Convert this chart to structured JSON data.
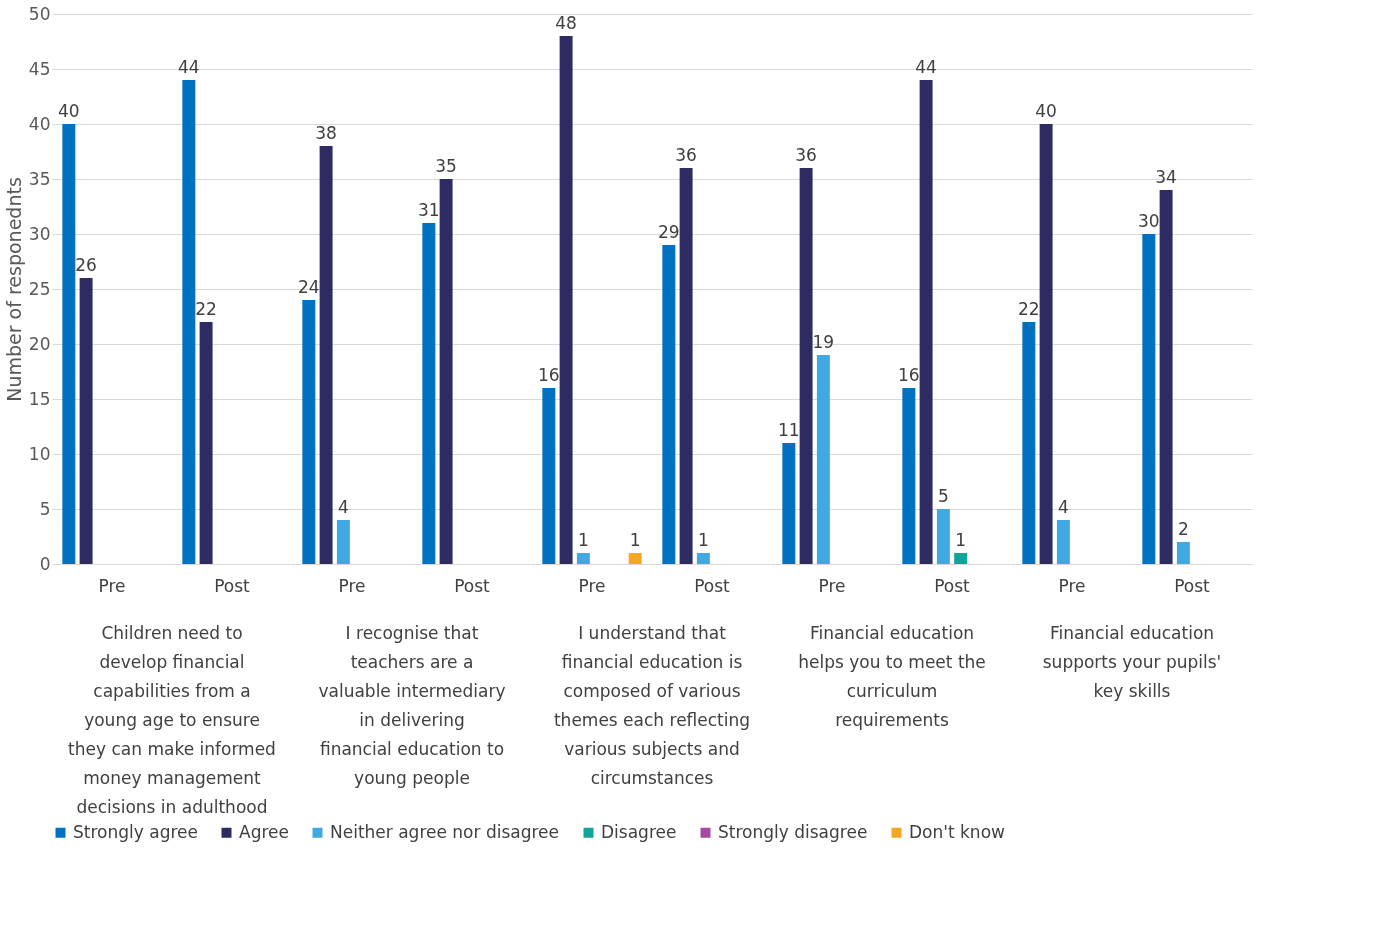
{
  "chart_data": {
    "type": "bar",
    "ylabel": "Number of responednts",
    "categories": [
      "Pre",
      "Post",
      "Pre",
      "Post",
      "Pre",
      "Post",
      "Pre",
      "Post",
      "Pre",
      "Post"
    ],
    "series": [
      {
        "name": "Strongly agree",
        "color": "#0070c0",
        "values": [
          40,
          44,
          24,
          31,
          16,
          29,
          11,
          16,
          22,
          30
        ]
      },
      {
        "name": "Agree",
        "color": "#2e2a62",
        "values": [
          26,
          22,
          38,
          35,
          48,
          36,
          36,
          44,
          40,
          34
        ]
      },
      {
        "name": "Neither agree nor disagree",
        "color": "#41a9e1",
        "values": [
          null,
          null,
          4,
          null,
          1,
          1,
          19,
          5,
          4,
          2
        ]
      },
      {
        "name": "Disagree",
        "color": "#12a39a",
        "values": [
          null,
          null,
          null,
          null,
          null,
          null,
          null,
          1,
          null,
          null
        ]
      },
      {
        "name": "Strongly disagree",
        "color": "#a5489f",
        "values": [
          null,
          null,
          null,
          null,
          null,
          null,
          null,
          null,
          null,
          null
        ]
      },
      {
        "name": "Don't know",
        "color": "#f5a623",
        "values": [
          null,
          null,
          null,
          null,
          1,
          null,
          null,
          null,
          null,
          null
        ]
      }
    ],
    "annotations": [
      "Children need to develop financial capabilities from a young age to ensure they can make informed money management decisions in adulthood",
      "I recognise that teachers are a valuable intermediary in delivering financial education to young people",
      "I understand that financial education is composed of various themes each reflecting various subjects and circumstances",
      "Financial education helps you to meet the curriculum requirements",
      "Financial education supports your pupils' key skills"
    ],
    "ylim": [
      0,
      50
    ],
    "yticks": [
      0,
      5,
      10,
      15,
      20,
      25,
      30,
      35,
      40,
      45,
      50
    ],
    "grid": "y",
    "legend": "bottom",
    "data_labels": true
  }
}
